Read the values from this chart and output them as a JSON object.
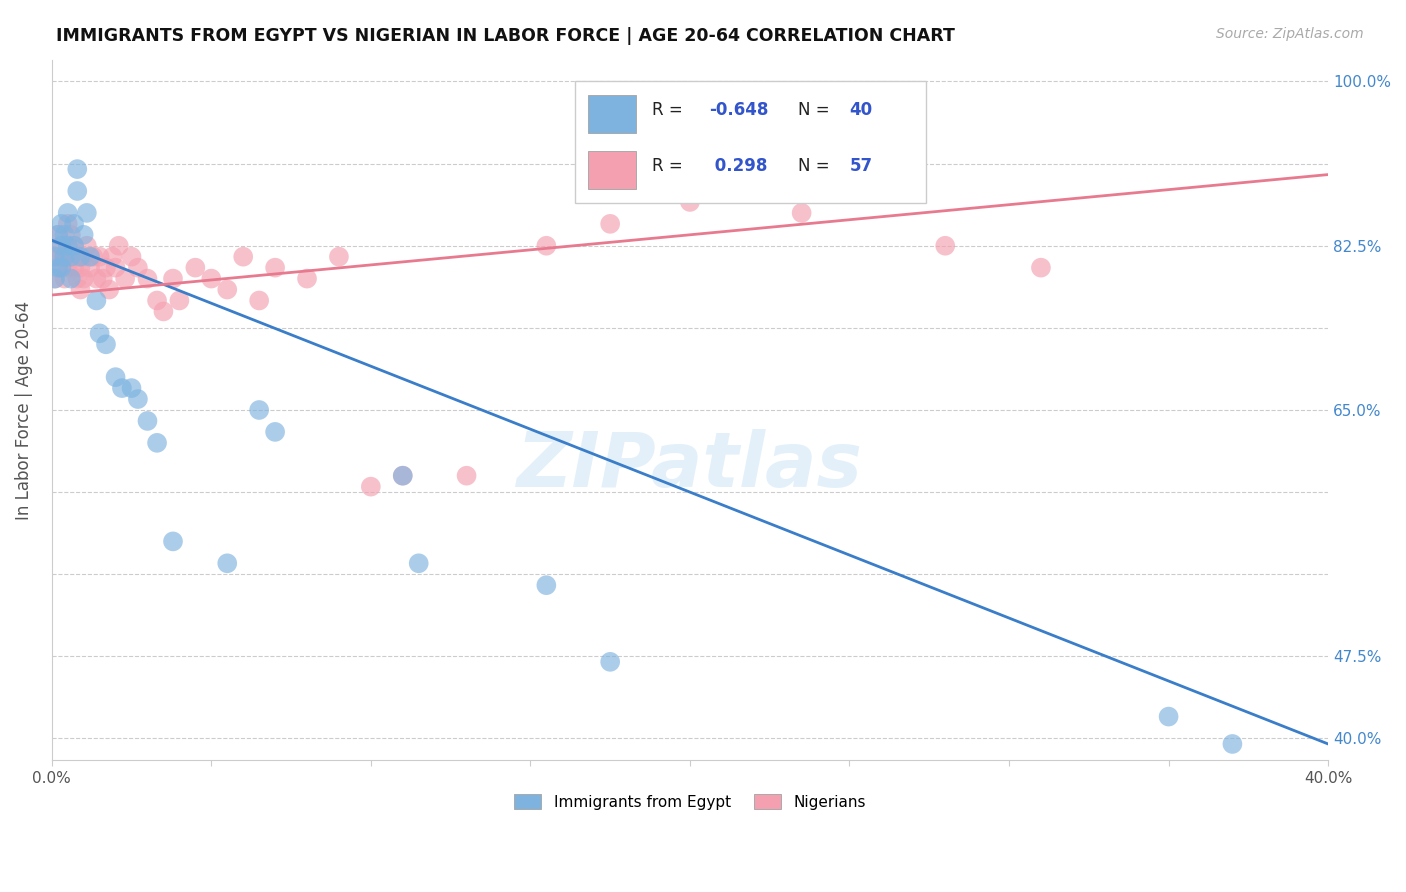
{
  "title": "IMMIGRANTS FROM EGYPT VS NIGERIAN IN LABOR FORCE | AGE 20-64 CORRELATION CHART",
  "source": "Source: ZipAtlas.com",
  "ylabel": "In Labor Force | Age 20-64",
  "xlim": [
    0.0,
    0.4
  ],
  "ylim": [
    0.38,
    1.02
  ],
  "xticks": [
    0.0,
    0.05,
    0.1,
    0.15,
    0.2,
    0.25,
    0.3,
    0.35,
    0.4
  ],
  "xticklabels": [
    "0.0%",
    "",
    "",
    "",
    "",
    "",
    "",
    "",
    "40.0%"
  ],
  "yticks": [
    0.4,
    0.475,
    0.55,
    0.625,
    0.7,
    0.775,
    0.85,
    0.925,
    1.0
  ],
  "yticklabels": [
    "40.0%",
    "47.5%",
    "",
    "",
    "65.0%",
    "",
    "82.5%",
    "",
    "100.0%"
  ],
  "egypt_color": "#7eb3e0",
  "nigeria_color": "#f4a0b0",
  "egypt_line_color": "#3a7dc9",
  "nigeria_line_color": "#e87a90",
  "background_color": "#ffffff",
  "grid_color": "#cccccc",
  "watermark": "ZIPatlas",
  "egypt_x": [
    0.001,
    0.001,
    0.002,
    0.002,
    0.003,
    0.003,
    0.003,
    0.004,
    0.004,
    0.005,
    0.005,
    0.006,
    0.006,
    0.007,
    0.007,
    0.008,
    0.008,
    0.009,
    0.01,
    0.011,
    0.012,
    0.014,
    0.015,
    0.017,
    0.02,
    0.022,
    0.025,
    0.027,
    0.03,
    0.033,
    0.038,
    0.055,
    0.065,
    0.07,
    0.11,
    0.115,
    0.155,
    0.175,
    0.35,
    0.37
  ],
  "egypt_y": [
    0.84,
    0.82,
    0.86,
    0.83,
    0.87,
    0.85,
    0.83,
    0.86,
    0.84,
    0.88,
    0.85,
    0.84,
    0.82,
    0.87,
    0.85,
    0.92,
    0.9,
    0.84,
    0.86,
    0.88,
    0.84,
    0.8,
    0.77,
    0.76,
    0.73,
    0.72,
    0.72,
    0.71,
    0.69,
    0.67,
    0.58,
    0.56,
    0.7,
    0.68,
    0.64,
    0.56,
    0.54,
    0.47,
    0.42,
    0.395
  ],
  "nigeria_x": [
    0.001,
    0.001,
    0.002,
    0.002,
    0.003,
    0.003,
    0.004,
    0.004,
    0.005,
    0.005,
    0.005,
    0.006,
    0.006,
    0.007,
    0.007,
    0.008,
    0.008,
    0.009,
    0.009,
    0.01,
    0.01,
    0.011,
    0.012,
    0.013,
    0.014,
    0.015,
    0.016,
    0.017,
    0.018,
    0.019,
    0.02,
    0.021,
    0.023,
    0.025,
    0.027,
    0.03,
    0.033,
    0.035,
    0.038,
    0.04,
    0.045,
    0.05,
    0.055,
    0.06,
    0.065,
    0.07,
    0.08,
    0.09,
    0.1,
    0.11,
    0.13,
    0.155,
    0.175,
    0.2,
    0.235,
    0.28,
    0.31
  ],
  "nigeria_y": [
    0.84,
    0.82,
    0.86,
    0.84,
    0.85,
    0.83,
    0.84,
    0.82,
    0.87,
    0.85,
    0.83,
    0.86,
    0.84,
    0.85,
    0.83,
    0.82,
    0.84,
    0.83,
    0.81,
    0.84,
    0.82,
    0.85,
    0.83,
    0.84,
    0.82,
    0.84,
    0.82,
    0.83,
    0.81,
    0.84,
    0.83,
    0.85,
    0.82,
    0.84,
    0.83,
    0.82,
    0.8,
    0.79,
    0.82,
    0.8,
    0.83,
    0.82,
    0.81,
    0.84,
    0.8,
    0.83,
    0.82,
    0.84,
    0.63,
    0.64,
    0.64,
    0.85,
    0.87,
    0.89,
    0.88,
    0.85,
    0.83
  ],
  "egypt_line_x0": 0.0,
  "egypt_line_y0": 0.855,
  "egypt_line_x1": 0.4,
  "egypt_line_y1": 0.395,
  "nigeria_line_x0": 0.0,
  "nigeria_line_y0": 0.805,
  "nigeria_line_x1": 0.4,
  "nigeria_line_y1": 0.915
}
